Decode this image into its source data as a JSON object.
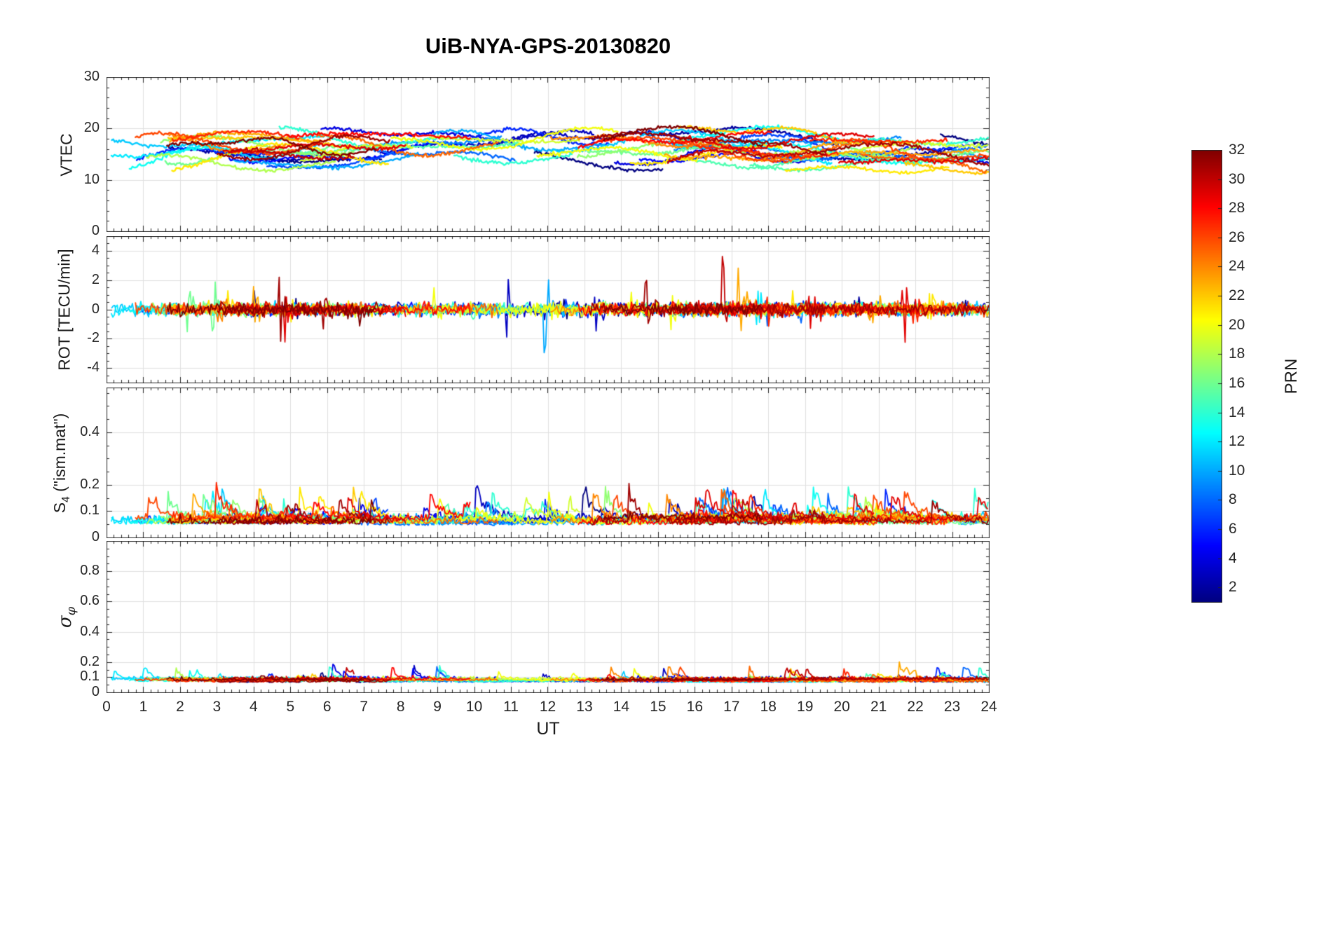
{
  "title": "UiB-NYA-GPS-20130820",
  "x_axis": {
    "label": "UT",
    "lim": [
      0,
      24
    ],
    "ticks": [
      0,
      1,
      2,
      3,
      4,
      5,
      6,
      7,
      8,
      9,
      10,
      11,
      12,
      13,
      14,
      15,
      16,
      17,
      18,
      19,
      20,
      21,
      22,
      23,
      24
    ]
  },
  "colorbar": {
    "label": "PRN",
    "range": [
      1,
      32
    ],
    "ticks": [
      2,
      4,
      6,
      8,
      10,
      12,
      14,
      16,
      18,
      20,
      22,
      24,
      26,
      28,
      30,
      32
    ],
    "colormap": "jet"
  },
  "prn_count": 32,
  "chart_data": [
    {
      "id": "vtec",
      "type": "line",
      "ylabel": "VTEC",
      "ylim": [
        0,
        30
      ],
      "yticks": [
        0,
        10,
        20,
        30
      ],
      "series_description": "32 GPS satellite (PRN) arcs, 2-3 visibility passes each, colored by PRN with jet colormap",
      "value_range_observed": [
        10,
        21
      ],
      "gen": {
        "base_min": 12.5,
        "base_span": 5,
        "diurnal_amp": 1.5,
        "wander_amp": 1.6,
        "wander2_amp": 0.7,
        "noise": 0.35,
        "clamp": [
          9.8,
          21.4
        ]
      }
    },
    {
      "id": "rot",
      "type": "line",
      "ylabel": "ROT [TECU/min]",
      "ylim": [
        -5,
        5
      ],
      "yticks": [
        -4,
        -2,
        0,
        2,
        4
      ],
      "series_description": "Rate of TEC change per PRN, noise band about 0 with intermittent spikes to about +/-3.5",
      "value_range_observed": [
        -3.5,
        3.7
      ],
      "gen": {
        "noise_sd": 0.2,
        "spike_prob": 0.006,
        "spike_amp_min": 0.7,
        "spike_amp_span": 2.3,
        "decay": 0.8,
        "clamp": [
          -4.2,
          4.2
        ]
      }
    },
    {
      "id": "s4",
      "type": "line",
      "ylabel": "S_4 (\"ism.mat\")",
      "ylabel_pre": "S",
      "ylabel_sub": "4",
      "ylabel_post": " (\"ism.mat\")",
      "ylim": [
        0,
        0.57
      ],
      "yticks": [
        0,
        0.1,
        0.2,
        0.4
      ],
      "series_description": "Amplitude scintillation index per PRN, baseline ~0.05-0.08 with bursts up to ~0.25",
      "value_range_observed": [
        0.03,
        0.27
      ],
      "gen": {
        "base_min": 0.045,
        "base_span": 0.025,
        "noise": 0.025,
        "spike_prob": 0.012,
        "spike_min": 0.04,
        "spike_span": 0.13,
        "decay": 0.88,
        "clamp": [
          0.025,
          0.5
        ]
      }
    },
    {
      "id": "sigma_phi",
      "type": "line",
      "ylabel": "σ_φ",
      "ylabel_pre": "σ",
      "ylabel_sub": "φ",
      "ylim": [
        0,
        1
      ],
      "yticks": [
        0,
        0.1,
        0.2,
        0.4,
        0.6,
        0.8
      ],
      "series_description": "Phase scintillation index per PRN, baseline ~0.07-0.09 with occasional spikes up to ~0.27",
      "value_range_observed": [
        0.05,
        0.27
      ],
      "gen": {
        "base_min": 0.065,
        "base_span": 0.02,
        "noise": 0.018,
        "spike_prob": 0.006,
        "spike_min": 0.04,
        "spike_span": 0.12,
        "decay": 0.8,
        "clamp": [
          0.03,
          0.9
        ]
      }
    }
  ]
}
